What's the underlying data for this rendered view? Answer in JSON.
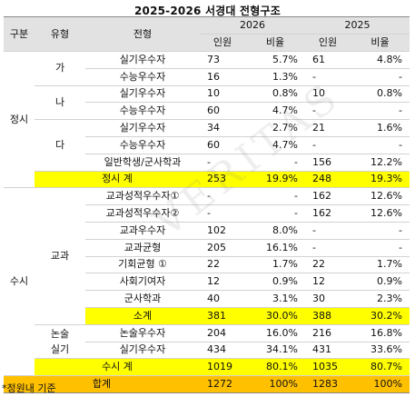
{
  "title": "2025-2026 서경대 전형구조",
  "headers": {
    "gubun": "구분",
    "yuhyeong": "유형",
    "jeonhyeong": "전형",
    "year_2026": "2026",
    "year_2025": "2025",
    "inwon": "인원",
    "biyul": "비율"
  },
  "sections": {
    "jeongsi": "정시",
    "susi": "수시"
  },
  "groups": {
    "ga": "가",
    "na": "나",
    "da": "다",
    "gyogwa": "교과",
    "nonsul_silgi": "논술\n실기"
  },
  "rows": [
    {
      "name": "실기우수자",
      "n26": "73",
      "r26": "5.7%",
      "n25": "61",
      "r25": "4.8%"
    },
    {
      "name": "수능우수자",
      "n26": "16",
      "r26": "1.3%",
      "n25": "-",
      "r25": "-"
    },
    {
      "name": "실기우수자",
      "n26": "10",
      "r26": "0.8%",
      "n25": "10",
      "r25": "0.8%"
    },
    {
      "name": "수능우수자",
      "n26": "60",
      "r26": "4.7%",
      "n25": "-",
      "r25": "-"
    },
    {
      "name": "실기우수자",
      "n26": "34",
      "r26": "2.7%",
      "n25": "21",
      "r25": "1.6%"
    },
    {
      "name": "수능우수자",
      "n26": "60",
      "r26": "4.7%",
      "n25": "-",
      "r25": "-"
    },
    {
      "name": "일반학생/군사학과",
      "n26": "-",
      "r26": "-",
      "n25": "156",
      "r25": "12.2%"
    },
    {
      "name": "교과성적우수자①",
      "n26": "-",
      "r26": "-",
      "n25": "162",
      "r25": "12.6%"
    },
    {
      "name": "교과성적우수자②",
      "n26": "-",
      "r26": "-",
      "n25": "162",
      "r25": "12.6%"
    },
    {
      "name": "교과우수자",
      "n26": "102",
      "r26": "8.0%",
      "n25": "-",
      "r25": "-"
    },
    {
      "name": "교과균형",
      "n26": "205",
      "r26": "16.1%",
      "n25": "-",
      "r25": "-"
    },
    {
      "name": "기회균형 ①",
      "n26": "22",
      "r26": "1.7%",
      "n25": "22",
      "r25": "1.7%"
    },
    {
      "name": "사회기여자",
      "n26": "12",
      "r26": "0.9%",
      "n25": "12",
      "r25": "0.9%"
    },
    {
      "name": "군사학과",
      "n26": "40",
      "r26": "3.1%",
      "n25": "30",
      "r25": "2.3%"
    },
    {
      "name": "논술우수자",
      "n26": "204",
      "r26": "16.0%",
      "n25": "216",
      "r25": "16.8%"
    },
    {
      "name": "실기우수자",
      "n26": "434",
      "r26": "34.1%",
      "n25": "431",
      "r25": "33.6%"
    }
  ],
  "subtotals": {
    "jeongsi": {
      "label": "정시 계",
      "n26": "253",
      "r26": "19.9%",
      "n25": "248",
      "r25": "19.3%"
    },
    "sogye": {
      "label": "소계",
      "n26": "381",
      "r26": "30.0%",
      "n25": "388",
      "r25": "30.2%"
    },
    "susi": {
      "label": "수시 계",
      "n26": "1019",
      "r26": "80.1%",
      "n25": "1035",
      "r25": "80.7%"
    },
    "total": {
      "label": "합계",
      "n26": "1272",
      "r26": "100%",
      "n25": "1283",
      "r25": "100%"
    }
  },
  "footnote": "*정원내 기준",
  "watermark": "VERITAS"
}
